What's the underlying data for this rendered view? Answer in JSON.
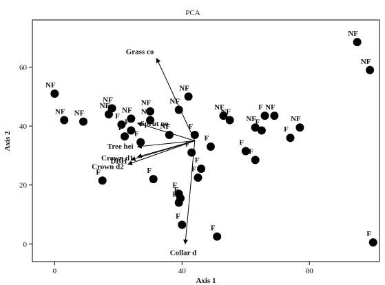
{
  "chart_data": {
    "type": "scatter",
    "title": "PCA",
    "xlabel": "Axis 1",
    "ylabel": "Axis 2",
    "xlim": [
      -7,
      102
    ],
    "ylim": [
      -6,
      76
    ],
    "x_ticks": [
      0,
      40,
      80
    ],
    "y_ticks": [
      0,
      20,
      40,
      60
    ],
    "grid": false,
    "points": [
      {
        "x": 0,
        "y": 51,
        "label": "NF"
      },
      {
        "x": 3,
        "y": 42,
        "label": "NF"
      },
      {
        "x": 9,
        "y": 41.5,
        "label": "NF"
      },
      {
        "x": 15,
        "y": 21.5,
        "label": "F"
      },
      {
        "x": 17,
        "y": 44,
        "label": "NF"
      },
      {
        "x": 18,
        "y": 46,
        "label": "NF"
      },
      {
        "x": 21,
        "y": 40.5,
        "label": "F"
      },
      {
        "x": 22,
        "y": 36.5,
        "label": "F"
      },
      {
        "x": 24,
        "y": 42.5,
        "label": "NF"
      },
      {
        "x": 24,
        "y": 38.5,
        "label": "F"
      },
      {
        "x": 27,
        "y": 34.5,
        "label": "F"
      },
      {
        "x": 30,
        "y": 45,
        "label": "NF"
      },
      {
        "x": 30,
        "y": 42,
        "label": "NF"
      },
      {
        "x": 31,
        "y": 22,
        "label": "F"
      },
      {
        "x": 36,
        "y": 37,
        "label": "NF"
      },
      {
        "x": 39,
        "y": 45.5,
        "label": "NF"
      },
      {
        "x": 39,
        "y": 17,
        "label": "F"
      },
      {
        "x": 39,
        "y": 14,
        "label": "F"
      },
      {
        "x": 39.5,
        "y": 15.5,
        "label": "F"
      },
      {
        "x": 40,
        "y": 6.5,
        "label": "F"
      },
      {
        "x": 42,
        "y": 50,
        "label": "NF"
      },
      {
        "x": 43,
        "y": 31,
        "label": "F"
      },
      {
        "x": 44,
        "y": 37,
        "label": "F"
      },
      {
        "x": 45,
        "y": 22.5,
        "label": "F"
      },
      {
        "x": 46,
        "y": 25.5,
        "label": "F"
      },
      {
        "x": 49,
        "y": 33,
        "label": "F"
      },
      {
        "x": 51,
        "y": 2.5,
        "label": "F"
      },
      {
        "x": 53,
        "y": 43.5,
        "label": "NF"
      },
      {
        "x": 55,
        "y": 42,
        "label": "NF"
      },
      {
        "x": 60,
        "y": 31.5,
        "label": "F"
      },
      {
        "x": 63,
        "y": 39.5,
        "label": "NF"
      },
      {
        "x": 63,
        "y": 28.5,
        "label": "F"
      },
      {
        "x": 65,
        "y": 38.5,
        "label": "F"
      },
      {
        "x": 66,
        "y": 43.5,
        "label": "F"
      },
      {
        "x": 69,
        "y": 43.5,
        "label": "NF"
      },
      {
        "x": 74,
        "y": 36,
        "label": "F"
      },
      {
        "x": 77,
        "y": 39.5,
        "label": "NF"
      },
      {
        "x": 95,
        "y": 68.5,
        "label": "NF"
      },
      {
        "x": 99,
        "y": 59,
        "label": "NF"
      },
      {
        "x": 100,
        "y": 0.5,
        "label": "F"
      }
    ],
    "vectors": [
      {
        "label": "Grass co",
        "origin": [
          44,
          35
        ],
        "end": [
          32,
          63
        ]
      },
      {
        "label": "Sprut no",
        "origin": [
          44,
          35
        ],
        "end": [
          26,
          41
        ]
      },
      {
        "label": "Tree hei",
        "origin": [
          44,
          35
        ],
        "end": [
          26,
          33
        ]
      },
      {
        "label": "Crown d1",
        "origin": [
          44,
          35
        ],
        "end": [
          26,
          29.5
        ]
      },
      {
        "label": "DBH",
        "origin": [
          44,
          35
        ],
        "end": [
          24,
          28.5
        ]
      },
      {
        "label": "Crown d2",
        "origin": [
          44,
          35
        ],
        "end": [
          23,
          27
        ]
      },
      {
        "label": "Collar d",
        "origin": [
          44,
          35
        ],
        "end": [
          41,
          0
        ]
      }
    ]
  }
}
